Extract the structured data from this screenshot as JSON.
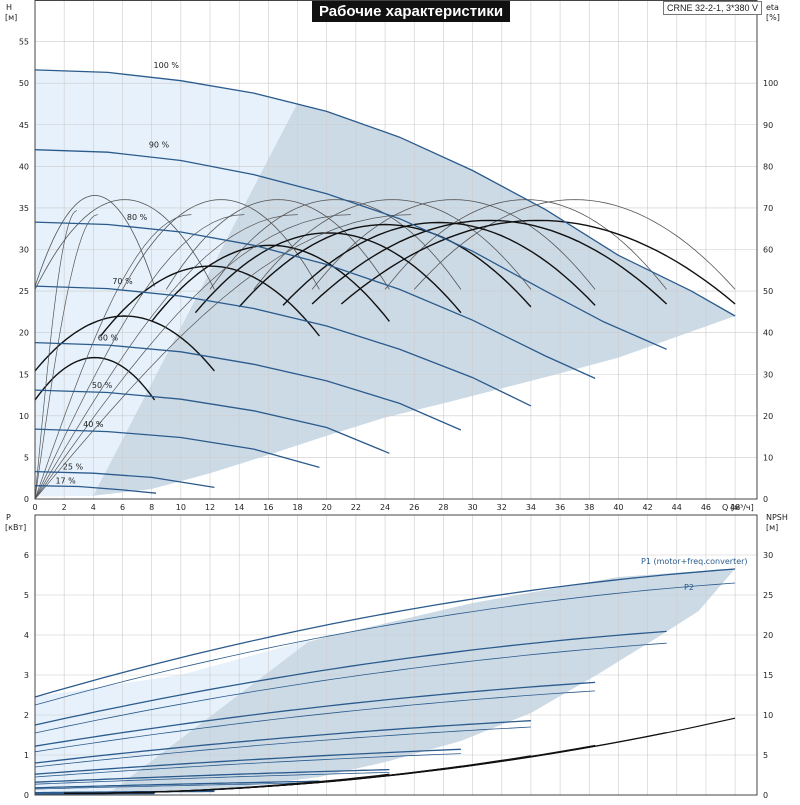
{
  "header": {
    "title": "Рабочие характеристики",
    "model": "CRNE 32-2-1, 3*380 V"
  },
  "colors": {
    "region": "#ccdae6",
    "region_light": "#e6f1fb",
    "curve_blue": "#2b5b8c",
    "curve_dark": "#111111",
    "grid": "#cccccc"
  },
  "chart_data": [
    {
      "type": "line",
      "name": "head-efficiency",
      "xlabel": "Q [м³/ч]",
      "ylabel_top": "H",
      "ylabel_bottom": "[м]",
      "y2label_top": "eta",
      "y2label_bottom": "[%]",
      "xlim": [
        0,
        49.5
      ],
      "ylim": [
        0,
        60
      ],
      "y2lim": [
        0,
        120
      ],
      "x_ticks": [
        "0",
        "2",
        "4",
        "6",
        "8",
        "10",
        "12",
        "14",
        "16",
        "18",
        "20",
        "22",
        "24",
        "26",
        "28",
        "30",
        "32",
        "34",
        "36",
        "38",
        "40",
        "42",
        "44",
        "46",
        "48"
      ],
      "y_ticks": [
        "0",
        "5",
        "10",
        "15",
        "20",
        "25",
        "30",
        "35",
        "40",
        "45",
        "50",
        "55"
      ],
      "y2_ticks": [
        "0",
        "10",
        "20",
        "30",
        "40",
        "50",
        "60",
        "70",
        "80",
        "90",
        "100"
      ],
      "operating_region": [
        [
          0,
          51.6
        ],
        [
          5,
          51.3
        ],
        [
          10,
          50.3
        ],
        [
          15,
          48.8
        ],
        [
          20,
          46.6
        ],
        [
          25,
          43.5
        ],
        [
          30,
          39.5
        ],
        [
          35,
          34.8
        ],
        [
          40,
          29.3
        ],
        [
          45,
          25.0
        ],
        [
          48,
          22.0
        ],
        [
          44,
          19.5
        ],
        [
          40,
          17.0
        ],
        [
          36,
          15.1
        ],
        [
          32,
          13.3
        ],
        [
          28,
          11.5
        ],
        [
          24,
          9.8
        ],
        [
          20,
          7.6
        ],
        [
          16,
          5.3
        ],
        [
          12,
          3.1
        ],
        [
          8,
          1.2
        ],
        [
          4,
          0.4
        ],
        [
          0,
          0.3
        ]
      ],
      "light_region": [
        [
          0,
          51.6
        ],
        [
          5,
          51.3
        ],
        [
          10,
          50.3
        ],
        [
          15,
          48.8
        ],
        [
          18,
          47.6
        ],
        [
          4,
          0.4
        ],
        [
          0,
          0.3
        ]
      ],
      "head_curves": [
        {
          "label": "100 %",
          "points": [
            [
              0,
              51.6
            ],
            [
              5,
              51.3
            ],
            [
              10,
              50.3
            ],
            [
              15,
              48.8
            ],
            [
              20,
              46.6
            ],
            [
              25,
              43.5
            ],
            [
              30,
              39.5
            ],
            [
              35,
              34.8
            ],
            [
              40,
              29.3
            ],
            [
              45,
              25.0
            ],
            [
              48,
              22.0
            ]
          ]
        },
        {
          "label": "90 %",
          "points": [
            [
              0,
              42.0
            ],
            [
              5,
              41.7
            ],
            [
              10,
              40.7
            ],
            [
              15,
              39.0
            ],
            [
              20,
              36.7
            ],
            [
              25,
              33.7
            ],
            [
              30,
              29.8
            ],
            [
              35,
              25.0
            ],
            [
              39,
              21.3
            ],
            [
              43.3,
              18.0
            ]
          ]
        },
        {
          "label": "80 %",
          "points": [
            [
              0,
              33.3
            ],
            [
              5,
              33.0
            ],
            [
              10,
              32.1
            ],
            [
              15,
              30.5
            ],
            [
              20,
              28.2
            ],
            [
              25,
              25.2
            ],
            [
              30,
              21.5
            ],
            [
              35,
              17.2
            ],
            [
              38.4,
              14.5
            ]
          ]
        },
        {
          "label": "70 %",
          "points": [
            [
              0,
              25.6
            ],
            [
              5,
              25.3
            ],
            [
              10,
              24.4
            ],
            [
              15,
              22.9
            ],
            [
              20,
              20.8
            ],
            [
              25,
              18.0
            ],
            [
              30,
              14.6
            ],
            [
              34,
              11.2
            ]
          ]
        },
        {
          "label": "60 %",
          "points": [
            [
              0,
              18.8
            ],
            [
              5,
              18.5
            ],
            [
              10,
              17.7
            ],
            [
              15,
              16.2
            ],
            [
              20,
              14.2
            ],
            [
              25,
              11.5
            ],
            [
              29.2,
              8.3
            ]
          ]
        },
        {
          "label": "50 %",
          "points": [
            [
              0,
              13.1
            ],
            [
              5,
              12.8
            ],
            [
              10,
              12.0
            ],
            [
              15,
              10.6
            ],
            [
              20,
              8.6
            ],
            [
              24.3,
              5.5
            ]
          ]
        },
        {
          "label": "40 %",
          "points": [
            [
              0,
              8.4
            ],
            [
              5,
              8.1
            ],
            [
              10,
              7.4
            ],
            [
              15,
              6.0
            ],
            [
              19.5,
              3.8
            ]
          ]
        },
        {
          "label": "25 %",
          "points": [
            [
              0,
              3.3
            ],
            [
              4,
              3.1
            ],
            [
              8,
              2.6
            ],
            [
              12.3,
              1.4
            ]
          ]
        },
        {
          "label": "17 %",
          "points": [
            [
              0,
              1.6
            ],
            [
              3,
              1.5
            ],
            [
              6,
              1.1
            ],
            [
              8.3,
              0.7
            ]
          ]
        }
      ],
      "eta_curves_thin": [
        {
          "x0": 0,
          "x1": 8.2,
          "peak": 73
        },
        {
          "x0": 0,
          "x1": 12.3,
          "peak": 72
        },
        {
          "x0": 6,
          "x1": 19.5,
          "peak": 72
        },
        {
          "x0": 9,
          "x1": 24.3,
          "peak": 72
        },
        {
          "x0": 12,
          "x1": 29.2,
          "peak": 72
        },
        {
          "x0": 15,
          "x1": 34,
          "peak": 72
        },
        {
          "x0": 19,
          "x1": 38.4,
          "peak": 72
        },
        {
          "x0": 24,
          "x1": 43.3,
          "peak": 72
        },
        {
          "x0": 26,
          "x1": 48,
          "peak": 72
        }
      ],
      "eta_curves_thick": [
        {
          "x0": 0,
          "x1": 8.2,
          "peak": 34
        },
        {
          "x0": 0,
          "x1": 12.3,
          "peak": 44
        },
        {
          "x0": 4.5,
          "x1": 19.5,
          "peak": 56
        },
        {
          "x0": 8,
          "x1": 24.3,
          "peak": 61
        },
        {
          "x0": 11,
          "x1": 29.2,
          "peak": 64
        },
        {
          "x0": 14,
          "x1": 34,
          "peak": 66
        },
        {
          "x0": 17,
          "x1": 38.4,
          "peak": 66.5
        },
        {
          "x0": 19,
          "x1": 43.3,
          "peak": 67
        },
        {
          "x0": 21,
          "x1": 48,
          "peak": 67
        }
      ]
    },
    {
      "type": "line",
      "name": "power-npsh",
      "ylabel_top": "P",
      "ylabel_bottom": "[кВт]",
      "y2label_top": "NPSH",
      "y2label_bottom": "[м]",
      "xlim": [
        0,
        49.5
      ],
      "ylim": [
        0,
        7
      ],
      "y2lim": [
        0,
        35
      ],
      "y_ticks": [
        "0",
        "1",
        "2",
        "3",
        "4",
        "5",
        "6"
      ],
      "y2_ticks": [
        "0",
        "5",
        "10",
        "15",
        "20",
        "25",
        "30"
      ],
      "operating_region": [
        [
          0,
          2.45
        ],
        [
          10,
          3.0
        ],
        [
          20,
          3.95
        ],
        [
          30,
          4.8
        ],
        [
          40,
          5.45
        ],
        [
          48,
          5.66
        ],
        [
          45.5,
          4.6
        ],
        [
          42.5,
          3.9
        ],
        [
          38.5,
          3.0
        ],
        [
          34,
          2.05
        ],
        [
          29.2,
          1.35
        ],
        [
          24.3,
          0.85
        ],
        [
          19.5,
          0.45
        ],
        [
          12.3,
          0.12
        ],
        [
          8.2,
          0.06
        ],
        [
          5,
          0.02
        ],
        [
          0,
          0.02
        ]
      ],
      "light_region": [
        [
          0,
          2.45
        ],
        [
          10,
          3.0
        ],
        [
          19,
          3.9
        ],
        [
          5,
          0.02
        ],
        [
          0,
          0.02
        ]
      ],
      "series_labels": {
        "p1": "P1 (motor+freq.converter)",
        "p2": "P2"
      },
      "p1_curves": [
        {
          "x0": 0,
          "x1": 48,
          "a": 2.45,
          "b": 3.2
        },
        {
          "x0": 0,
          "x1": 43.3,
          "a": 1.75,
          "b": 2.45
        },
        {
          "x0": 0,
          "x1": 38.4,
          "a": 1.22,
          "b": 1.78
        },
        {
          "x0": 0,
          "x1": 34,
          "a": 0.8,
          "b": 1.27
        },
        {
          "x0": 0,
          "x1": 29.2,
          "a": 0.52,
          "b": 0.83
        },
        {
          "x0": 0,
          "x1": 24.3,
          "a": 0.32,
          "b": 0.48
        },
        {
          "x0": 0,
          "x1": 19.5,
          "a": 0.18,
          "b": 0.3
        },
        {
          "x0": 0,
          "x1": 12.3,
          "a": 0.06,
          "b": 0.1
        },
        {
          "x0": 0,
          "x1": 8.2,
          "a": 0.03,
          "b": 0.05
        }
      ],
      "p2_curves": [
        {
          "x0": 0,
          "x1": 48,
          "a": 2.25,
          "b": 3.05
        },
        {
          "x0": 0,
          "x1": 43.3,
          "a": 1.55,
          "b": 2.35
        },
        {
          "x0": 0,
          "x1": 38.4,
          "a": 1.08,
          "b": 1.7
        },
        {
          "x0": 0,
          "x1": 34,
          "a": 0.7,
          "b": 1.2
        },
        {
          "x0": 0,
          "x1": 29.2,
          "a": 0.45,
          "b": 0.78
        },
        {
          "x0": 0,
          "x1": 24.3,
          "a": 0.27,
          "b": 0.45
        },
        {
          "x0": 0,
          "x1": 19.5,
          "a": 0.15,
          "b": 0.28
        },
        {
          "x0": 0,
          "x1": 12.3,
          "a": 0.05,
          "b": 0.09
        },
        {
          "x0": 0,
          "x1": 8.2,
          "a": 0.02,
          "b": 0.04
        }
      ],
      "npsh_curves": [
        {
          "x0": 2,
          "x1": 48,
          "y1": 9.6
        },
        {
          "x0": 2,
          "x1": 43.3,
          "y1": 7.8
        },
        {
          "x0": 2,
          "x1": 38.4,
          "y1": 6.2
        },
        {
          "x0": 2,
          "x1": 34,
          "y1": 4.9
        },
        {
          "x0": 2,
          "x1": 29.2,
          "y1": 3.6
        },
        {
          "x0": 2,
          "x1": 24.3,
          "y1": 2.6
        },
        {
          "x0": 2,
          "x1": 19.5,
          "y1": 1.7
        },
        {
          "x0": 2,
          "x1": 12.3,
          "y1": 0.7
        },
        {
          "x0": 2,
          "x1": 8.2,
          "y1": 0.3
        }
      ]
    }
  ]
}
